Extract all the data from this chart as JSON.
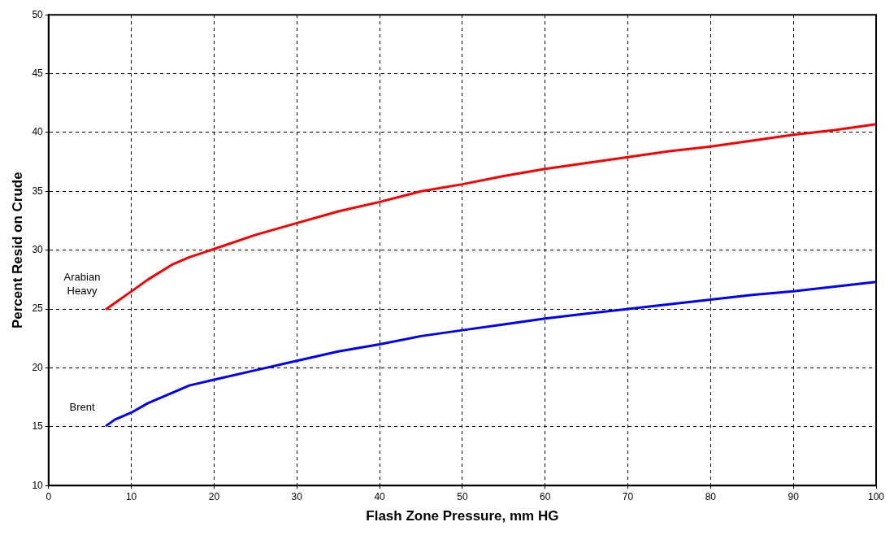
{
  "chart_data": {
    "type": "line",
    "xlabel": "Flash Zone Pressure, mm HG",
    "ylabel": "Percent Resid on Crude",
    "xlim": [
      0,
      100
    ],
    "xticks": [
      0,
      10,
      20,
      30,
      40,
      50,
      60,
      70,
      80,
      90,
      100
    ],
    "ylim": [
      10,
      50
    ],
    "yticks": [
      10,
      15,
      20,
      25,
      30,
      35,
      40,
      45,
      50
    ],
    "grid": true,
    "legend": false,
    "marker": "none",
    "line_style": "solid",
    "series": [
      {
        "name": "Arabian Heavy",
        "color": "#ff0000",
        "x": [
          7,
          8,
          10,
          12,
          15,
          17,
          20,
          25,
          30,
          35,
          40,
          45,
          50,
          55,
          60,
          65,
          70,
          75,
          80,
          85,
          90,
          95,
          100
        ],
        "values": [
          25,
          25.5,
          26.5,
          27.5,
          28.8,
          29.4,
          30.1,
          31.3,
          32.3,
          33.3,
          34.1,
          35,
          35.6,
          36.3,
          36.9,
          37.4,
          37.9,
          38.4,
          38.8,
          39.3,
          39.8,
          40.2,
          40.7
        ]
      },
      {
        "name": "Brent",
        "color": "#0000ff",
        "x": [
          7,
          8,
          10,
          12,
          15,
          17,
          20,
          25,
          30,
          35,
          40,
          45,
          50,
          55,
          60,
          65,
          70,
          75,
          80,
          85,
          90,
          95,
          100
        ],
        "values": [
          15.1,
          15.6,
          16.2,
          17,
          17.9,
          18.5,
          19,
          19.8,
          20.6,
          21.4,
          22,
          22.7,
          23.2,
          23.7,
          24.2,
          24.6,
          25,
          25.4,
          25.8,
          26.2,
          26.5,
          26.9,
          27.3
        ]
      }
    ]
  }
}
